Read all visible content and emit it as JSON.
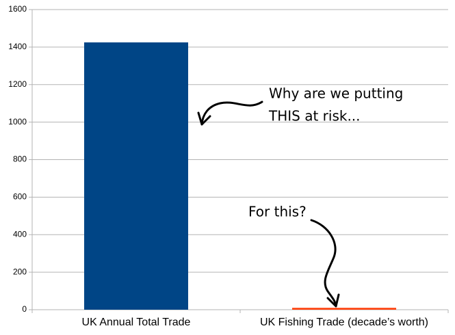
{
  "chart_data": {
    "type": "bar",
    "categories": [
      "UK Annual Total Trade",
      "UK Fishing Trade (decade’s worth)"
    ],
    "values": [
      1425,
      10
    ],
    "colors": [
      "#004586",
      "#ff420e"
    ],
    "ylim": [
      0,
      1600
    ],
    "yticks": [
      0,
      200,
      400,
      600,
      800,
      1000,
      1200,
      1400,
      1600
    ],
    "grid": true,
    "annotations": [
      "Why are we putting",
      "THIS at risk...",
      "For this?"
    ]
  }
}
